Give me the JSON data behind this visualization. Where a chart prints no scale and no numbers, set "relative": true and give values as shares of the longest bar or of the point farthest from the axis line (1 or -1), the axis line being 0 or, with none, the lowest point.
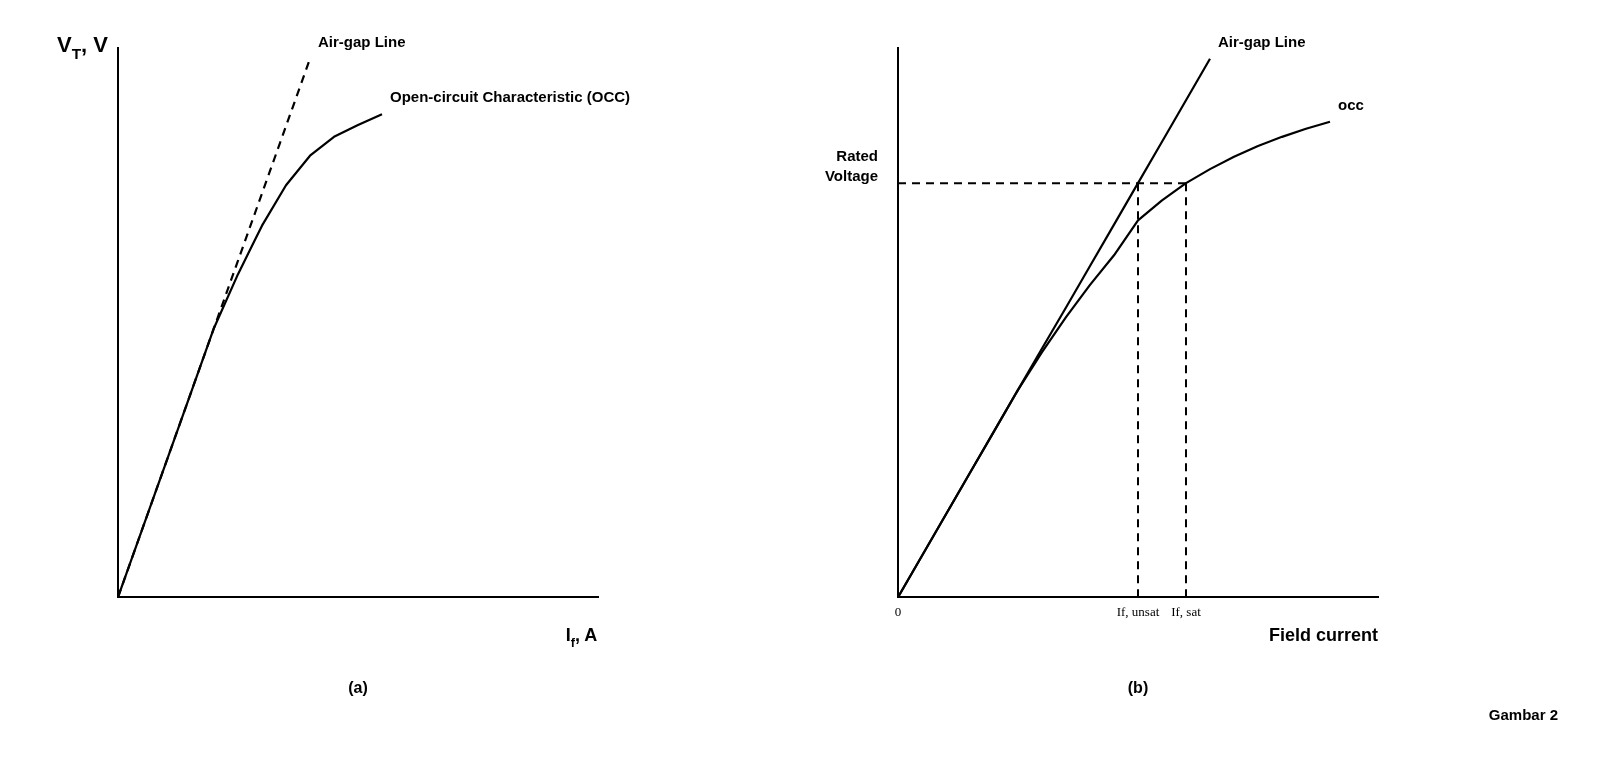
{
  "chart_data": [
    {
      "type": "line",
      "title": "(a)",
      "xlabel": "I$_{f}$, A",
      "ylabel": "V$_{T}$, V",
      "relative": true,
      "grid": false,
      "legend": false,
      "marker": "none",
      "categories": [
        null,
        null,
        null,
        null,
        null,
        null,
        null,
        null,
        null,
        null,
        null,
        null,
        null,
        null,
        null,
        null,
        null,
        null,
        null,
        null,
        null
      ],
      "series": [
        {
          "name": "Air-gap Line",
          "color": "#000000",
          "line_style": "dashed",
          "values": [
            0,
            0.125,
            0.25,
            0.375,
            0.5,
            0.625,
            0.75,
            0.875,
            1.0,
            null,
            null,
            null,
            null,
            null,
            null,
            null,
            null,
            null,
            null,
            null,
            null
          ]
        },
        {
          "name": "Open-circuit Characteristic (OCC)",
          "color": "#000000",
          "line_style": "solid",
          "values": [
            0,
            0.125,
            0.25,
            0.375,
            0.5,
            0.6,
            0.69,
            0.765,
            0.82,
            0.855,
            0.877,
            0.897,
            null,
            null,
            null,
            null,
            null,
            null,
            null,
            null,
            null
          ]
        }
      ]
    },
    {
      "type": "line",
      "title": "(b)",
      "xlabel": "Field current",
      "relative": true,
      "tick_labels": "x",
      "grid": false,
      "legend": false,
      "marker": "none",
      "categories": [
        "0",
        null,
        null,
        null,
        null,
        null,
        null,
        null,
        null,
        null,
        "If, unsat",
        null,
        "If, sat",
        null,
        null,
        null,
        null,
        null,
        null,
        null,
        null
      ],
      "series": [
        {
          "name": "Air-gap Line",
          "color": "#000000",
          "line_style": "solid",
          "values": [
            0,
            0.077,
            0.154,
            0.231,
            0.308,
            0.385,
            0.462,
            0.538,
            0.615,
            0.692,
            0.769,
            0.846,
            0.923,
            1.0,
            null,
            null,
            null,
            null,
            null,
            null,
            null
          ]
        },
        {
          "name": "occ",
          "color": "#000000",
          "line_style": "solid",
          "values": [
            0,
            0.077,
            0.154,
            0.231,
            0.308,
            0.385,
            0.455,
            0.52,
            0.58,
            0.635,
            0.7,
            0.737,
            0.769,
            0.795,
            0.818,
            0.838,
            0.855,
            0.87,
            0.883,
            null,
            null
          ]
        }
      ],
      "ref_lines": [
        {
          "axis": "y",
          "value": 0.769,
          "label": "Rated Voltage",
          "color": "#000000",
          "line_style": "dashed"
        },
        {
          "axis": "x",
          "value": "If, unsat",
          "color": "#000000",
          "line_style": "dashed"
        },
        {
          "axis": "x",
          "value": "If, sat",
          "color": "#000000",
          "line_style": "dashed"
        }
      ],
      "annotations": [
        "Gambar 2"
      ]
    }
  ]
}
